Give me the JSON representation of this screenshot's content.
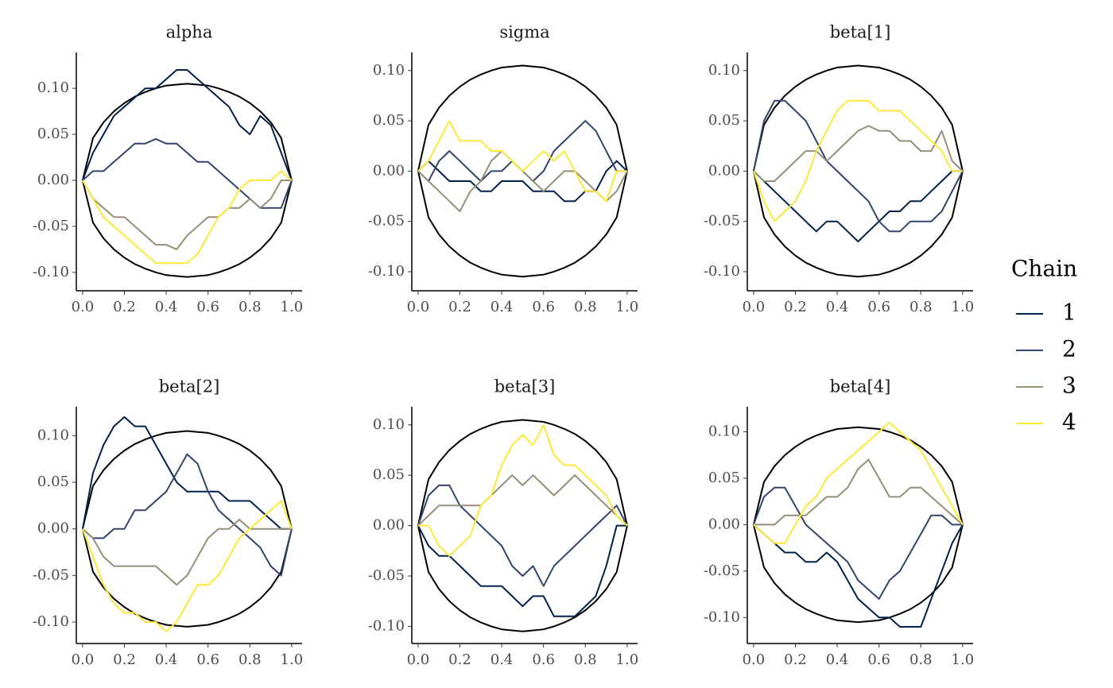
{
  "chart_data": {
    "type": "line",
    "legend_title": "Chain",
    "x": [
      0,
      0.05,
      0.1,
      0.15,
      0.2,
      0.25,
      0.3,
      0.35,
      0.4,
      0.45,
      0.5,
      0.55,
      0.6,
      0.65,
      0.7,
      0.75,
      0.8,
      0.85,
      0.9,
      0.95,
      1
    ],
    "xlim": [
      -0.03,
      1.05
    ],
    "xticks": [
      {
        "value": 0,
        "label": "0.0"
      },
      0.2,
      0.4,
      0.6,
      0.8,
      {
        "value": 1,
        "label": "1.0"
      }
    ],
    "envelope": {
      "color": "#000000",
      "upper": [
        0,
        0.046,
        0.063,
        0.075,
        0.084,
        0.091,
        0.096,
        0.1,
        0.103,
        0.104,
        0.105,
        0.104,
        0.103,
        0.1,
        0.096,
        0.091,
        0.084,
        0.075,
        0.063,
        0.046,
        0
      ],
      "lower": [
        0,
        -0.046,
        -0.063,
        -0.075,
        -0.084,
        -0.091,
        -0.096,
        -0.1,
        -0.103,
        -0.104,
        -0.105,
        -0.104,
        -0.103,
        -0.1,
        -0.096,
        -0.091,
        -0.084,
        -0.075,
        -0.063,
        -0.046,
        0
      ]
    },
    "chains": [
      {
        "name": "1",
        "color": "#00204d"
      },
      {
        "name": "2",
        "color": "#31446b"
      },
      {
        "name": "3",
        "color": "#958f78"
      },
      {
        "name": "4",
        "color": "#fde737"
      }
    ],
    "panels": [
      {
        "title": "alpha",
        "ylim": [
          -0.12,
          0.139
        ],
        "yticks": [
          {
            "value": -0.1,
            "label": "-0.10"
          },
          -0.05,
          {
            "value": 0,
            "label": "0.00"
          },
          0.05,
          {
            "value": 0.1,
            "label": "0.10"
          }
        ],
        "series": [
          {
            "values": [
              0,
              0.03,
              0.05,
              0.07,
              0.08,
              0.09,
              0.1,
              0.1,
              0.11,
              0.12,
              0.12,
              0.11,
              0.1,
              0.09,
              0.08,
              0.06,
              0.05,
              0.07,
              0.06,
              0.03,
              0
            ]
          },
          {
            "values": [
              0,
              0.01,
              0.01,
              0.02,
              0.03,
              0.04,
              0.04,
              0.045,
              0.04,
              0.04,
              0.03,
              0.02,
              0.02,
              0.01,
              0,
              -0.01,
              -0.02,
              -0.03,
              -0.03,
              -0.03,
              0
            ]
          },
          {
            "values": [
              0,
              -0.02,
              -0.03,
              -0.04,
              -0.04,
              -0.05,
              -0.06,
              -0.07,
              -0.07,
              -0.075,
              -0.06,
              -0.05,
              -0.04,
              -0.04,
              -0.03,
              -0.03,
              -0.02,
              -0.03,
              -0.02,
              0,
              0
            ]
          },
          {
            "values": [
              0,
              -0.02,
              -0.04,
              -0.05,
              -0.06,
              -0.07,
              -0.08,
              -0.09,
              -0.09,
              -0.09,
              -0.09,
              -0.08,
              -0.06,
              -0.04,
              -0.03,
              -0.01,
              0,
              0,
              0,
              0.01,
              0
            ]
          }
        ]
      },
      {
        "title": "sigma",
        "ylim": [
          -0.119,
          0.118
        ],
        "yticks": [
          {
            "value": -0.1,
            "label": "-0.10"
          },
          -0.05,
          {
            "value": 0,
            "label": "0.00"
          },
          0.05,
          {
            "value": 0.1,
            "label": "0.10"
          }
        ],
        "series": [
          {
            "values": [
              0,
              0.01,
              0,
              -0.01,
              -0.01,
              -0.01,
              -0.02,
              -0.02,
              -0.01,
              -0.01,
              -0.01,
              -0.02,
              -0.02,
              -0.02,
              -0.03,
              -0.03,
              -0.02,
              -0.02,
              0,
              0.01,
              0
            ]
          },
          {
            "values": [
              0,
              -0.01,
              0.01,
              0.02,
              0.01,
              0,
              -0.01,
              0,
              0,
              0.01,
              0,
              -0.01,
              0,
              0.02,
              0.03,
              0.04,
              0.05,
              0.04,
              0.02,
              0,
              0
            ]
          },
          {
            "values": [
              0,
              -0.01,
              -0.02,
              -0.03,
              -0.04,
              -0.02,
              -0.01,
              0.01,
              0.02,
              0.01,
              0,
              -0.01,
              -0.02,
              -0.01,
              0,
              0,
              -0.01,
              -0.02,
              -0.03,
              -0.02,
              0
            ]
          },
          {
            "values": [
              0,
              0.01,
              0.03,
              0.05,
              0.03,
              0.03,
              0.03,
              0.02,
              0.02,
              0.01,
              0,
              0.01,
              0.02,
              0.01,
              0.02,
              0,
              -0.02,
              -0.02,
              -0.03,
              0,
              0
            ]
          }
        ]
      },
      {
        "title": "beta[1]",
        "ylim": [
          -0.119,
          0.118
        ],
        "yticks": [
          {
            "value": -0.1,
            "label": "-0.10"
          },
          -0.05,
          {
            "value": 0,
            "label": "0.00"
          },
          0.05,
          {
            "value": 0.1,
            "label": "0.10"
          }
        ],
        "series": [
          {
            "values": [
              0,
              -0.01,
              -0.02,
              -0.03,
              -0.04,
              -0.05,
              -0.06,
              -0.05,
              -0.05,
              -0.06,
              -0.07,
              -0.06,
              -0.05,
              -0.04,
              -0.04,
              -0.03,
              -0.03,
              -0.02,
              -0.01,
              0,
              0
            ]
          },
          {
            "values": [
              0,
              0.05,
              0.07,
              0.07,
              0.06,
              0.05,
              0.03,
              0.01,
              0,
              -0.01,
              -0.02,
              -0.03,
              -0.05,
              -0.06,
              -0.06,
              -0.05,
              -0.05,
              -0.05,
              -0.04,
              -0.02,
              0
            ]
          },
          {
            "values": [
              0,
              -0.01,
              -0.01,
              0,
              0.01,
              0.02,
              0.02,
              0.01,
              0.02,
              0.03,
              0.04,
              0.045,
              0.04,
              0.04,
              0.03,
              0.03,
              0.02,
              0.02,
              0.04,
              0.01,
              0
            ]
          },
          {
            "values": [
              0,
              -0.03,
              -0.05,
              -0.04,
              -0.03,
              -0.01,
              0.02,
              0.04,
              0.06,
              0.07,
              0.07,
              0.07,
              0.06,
              0.06,
              0.06,
              0.05,
              0.04,
              0.03,
              0.02,
              0,
              0
            ]
          }
        ]
      },
      {
        "title": "beta[2]",
        "ylim": [
          -0.123,
          0.131
        ],
        "yticks": [
          {
            "value": -0.1,
            "label": "-0.10"
          },
          -0.05,
          {
            "value": 0,
            "label": "0.00"
          },
          0.05,
          {
            "value": 0.1,
            "label": "0.10"
          }
        ],
        "series": [
          {
            "values": [
              0,
              0.06,
              0.09,
              0.11,
              0.12,
              0.11,
              0.11,
              0.09,
              0.07,
              0.05,
              0.04,
              0.04,
              0.04,
              0.04,
              0.03,
              0.03,
              0.03,
              0.02,
              0.01,
              0,
              0
            ]
          },
          {
            "values": [
              0,
              -0.01,
              -0.01,
              0,
              0,
              0.02,
              0.02,
              0.03,
              0.04,
              0.06,
              0.08,
              0.07,
              0.04,
              0.02,
              0.01,
              0,
              -0.01,
              -0.02,
              -0.04,
              -0.05,
              0
            ]
          },
          {
            "values": [
              0,
              -0.01,
              -0.03,
              -0.04,
              -0.04,
              -0.04,
              -0.04,
              -0.04,
              -0.05,
              -0.06,
              -0.05,
              -0.03,
              -0.01,
              0,
              0,
              0.01,
              0,
              0,
              0,
              0,
              0
            ]
          },
          {
            "values": [
              0,
              -0.03,
              -0.06,
              -0.08,
              -0.09,
              -0.09,
              -0.1,
              -0.1,
              -0.11,
              -0.1,
              -0.08,
              -0.06,
              -0.06,
              -0.05,
              -0.03,
              -0.01,
              0,
              0.01,
              0.02,
              0.03,
              0
            ]
          }
        ]
      },
      {
        "title": "beta[3]",
        "ylim": [
          -0.117,
          0.118
        ],
        "yticks": [
          {
            "value": -0.1,
            "label": "-0.10"
          },
          -0.05,
          {
            "value": 0,
            "label": "0.00"
          },
          0.05,
          {
            "value": 0.1,
            "label": "0.10"
          }
        ],
        "series": [
          {
            "values": [
              0,
              -0.02,
              -0.03,
              -0.03,
              -0.04,
              -0.05,
              -0.06,
              -0.06,
              -0.06,
              -0.07,
              -0.08,
              -0.07,
              -0.07,
              -0.09,
              -0.09,
              -0.09,
              -0.08,
              -0.07,
              -0.04,
              0,
              0
            ]
          },
          {
            "values": [
              0,
              0.03,
              0.04,
              0.04,
              0.02,
              0.01,
              0,
              -0.01,
              -0.02,
              -0.04,
              -0.05,
              -0.04,
              -0.06,
              -0.04,
              -0.03,
              -0.02,
              -0.01,
              0,
              0.01,
              0.02,
              0
            ]
          },
          {
            "values": [
              0,
              0.01,
              0.02,
              0.02,
              0.02,
              0.02,
              0.02,
              0.03,
              0.04,
              0.05,
              0.04,
              0.05,
              0.04,
              0.03,
              0.04,
              0.05,
              0.04,
              0.03,
              0.02,
              0.01,
              0
            ]
          },
          {
            "values": [
              0,
              0,
              -0.02,
              -0.03,
              -0.02,
              -0.01,
              0.02,
              0.03,
              0.06,
              0.08,
              0.09,
              0.08,
              0.1,
              0.07,
              0.06,
              0.06,
              0.05,
              0.04,
              0.03,
              0.01,
              0
            ]
          }
        ]
      },
      {
        "title": "beta[4]",
        "ylim": [
          -0.128,
          0.127
        ],
        "yticks": [
          {
            "value": -0.1,
            "label": "-0.10"
          },
          -0.05,
          {
            "value": 0,
            "label": "0.00"
          },
          0.05,
          {
            "value": 0.1,
            "label": "0.10"
          }
        ],
        "series": [
          {
            "values": [
              0,
              -0.01,
              -0.02,
              -0.03,
              -0.03,
              -0.04,
              -0.04,
              -0.03,
              -0.04,
              -0.06,
              -0.08,
              -0.09,
              -0.1,
              -0.1,
              -0.11,
              -0.11,
              -0.11,
              -0.08,
              -0.05,
              -0.02,
              0
            ]
          },
          {
            "values": [
              0,
              0.03,
              0.04,
              0.04,
              0.02,
              0,
              -0.01,
              -0.02,
              -0.03,
              -0.04,
              -0.06,
              -0.07,
              -0.08,
              -0.06,
              -0.05,
              -0.03,
              -0.01,
              0.01,
              0.01,
              0,
              0
            ]
          },
          {
            "values": [
              0,
              0,
              0,
              0.01,
              0.01,
              0.01,
              0.02,
              0.03,
              0.03,
              0.04,
              0.06,
              0.07,
              0.05,
              0.03,
              0.03,
              0.04,
              0.04,
              0.03,
              0.02,
              0.01,
              0
            ]
          },
          {
            "values": [
              0,
              -0.01,
              -0.02,
              -0.02,
              0,
              0.02,
              0.03,
              0.05,
              0.06,
              0.07,
              0.08,
              0.09,
              0.1,
              0.11,
              0.1,
              0.09,
              0.08,
              0.06,
              0.04,
              0.02,
              0
            ]
          }
        ]
      }
    ]
  }
}
